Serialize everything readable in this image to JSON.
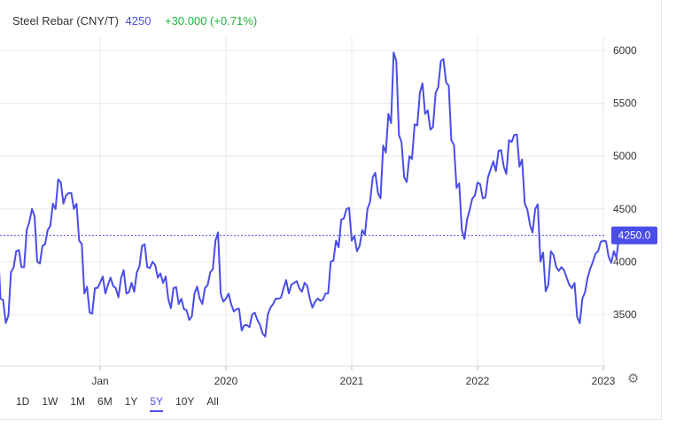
{
  "header": {
    "symbol": "Steel Rebar (CNY/T)",
    "price": "4250",
    "change": "+30.000 (+0.71%)"
  },
  "ranges": [
    "1D",
    "1W",
    "1M",
    "6M",
    "1Y",
    "5Y",
    "10Y",
    "All"
  ],
  "active_range": "5Y",
  "settings_icon": "gear-icon",
  "colors": {
    "line": "#4a4de8",
    "up": "#22b33c",
    "grid": "#e8e8e8",
    "label_bg": "#4a4de8"
  },
  "chart_data": {
    "type": "line",
    "title": "Steel Rebar (CNY/T)",
    "xlabel": "",
    "ylabel": "",
    "x_ticks": [
      "Jan",
      "2020",
      "2021",
      "2022",
      "2023"
    ],
    "y_ticks": [
      3500,
      4000,
      4500,
      5000,
      5500,
      6000
    ],
    "ylim": [
      3000,
      6100
    ],
    "current_value_label": "4250.0",
    "current_value": 4250,
    "grid": true,
    "series": [
      {
        "name": "Steel Rebar",
        "points": [
          [
            "2018-03",
            4150
          ],
          [
            "2018-03",
            3650
          ],
          [
            "2018-04",
            3420
          ],
          [
            "2018-04",
            3900
          ],
          [
            "2018-05",
            4100
          ],
          [
            "2018-05",
            3950
          ],
          [
            "2018-06",
            4300
          ],
          [
            "2018-06",
            4500
          ],
          [
            "2018-07",
            4000
          ],
          [
            "2018-07",
            4150
          ],
          [
            "2018-08",
            4300
          ],
          [
            "2018-08",
            4550
          ],
          [
            "2018-09",
            4780
          ],
          [
            "2018-09",
            4550
          ],
          [
            "2018-10",
            4650
          ],
          [
            "2018-10",
            4500
          ],
          [
            "2018-11",
            4200
          ],
          [
            "2018-11",
            3700
          ],
          [
            "2018-12",
            3520
          ],
          [
            "2018-12",
            3750
          ],
          [
            "2019-01",
            3800
          ],
          [
            "2019-01",
            3700
          ],
          [
            "2019-02",
            3850
          ],
          [
            "2019-02",
            3750
          ],
          [
            "2019-03",
            3850
          ],
          [
            "2019-03",
            3700
          ],
          [
            "2019-04",
            3800
          ],
          [
            "2019-04",
            3900
          ],
          [
            "2019-05",
            4150
          ],
          [
            "2019-05",
            3950
          ],
          [
            "2019-06",
            4000
          ],
          [
            "2019-06",
            3850
          ],
          [
            "2019-07",
            3800
          ],
          [
            "2019-07",
            3650
          ],
          [
            "2019-08",
            3750
          ],
          [
            "2019-08",
            3600
          ],
          [
            "2019-09",
            3550
          ],
          [
            "2019-09",
            3450
          ],
          [
            "2019-10",
            3700
          ],
          [
            "2019-10",
            3650
          ],
          [
            "2019-11",
            3750
          ],
          [
            "2019-11",
            3900
          ],
          [
            "2019-12",
            4200
          ],
          [
            "2019-12",
            3700
          ],
          [
            "2020-01",
            3650
          ],
          [
            "2020-01",
            3600
          ],
          [
            "2020-02",
            3550
          ],
          [
            "2020-02",
            3350
          ],
          [
            "2020-03",
            3400
          ],
          [
            "2020-03",
            3500
          ],
          [
            "2020-04",
            3450
          ],
          [
            "2020-04",
            3320
          ],
          [
            "2020-05",
            3500
          ],
          [
            "2020-05",
            3600
          ],
          [
            "2020-06",
            3650
          ],
          [
            "2020-06",
            3750
          ],
          [
            "2020-07",
            3700
          ],
          [
            "2020-07",
            3800
          ],
          [
            "2020-08",
            3750
          ],
          [
            "2020-08",
            3800
          ],
          [
            "2020-09",
            3650
          ],
          [
            "2020-09",
            3620
          ],
          [
            "2020-10",
            3630
          ],
          [
            "2020-10",
            3700
          ],
          [
            "2020-11",
            4000
          ],
          [
            "2020-11",
            4200
          ],
          [
            "2020-12",
            4400
          ],
          [
            "2020-12",
            4500
          ],
          [
            "2021-01",
            4200
          ],
          [
            "2021-01",
            4100
          ],
          [
            "2021-02",
            4300
          ],
          [
            "2021-02",
            4500
          ],
          [
            "2021-03",
            4800
          ],
          [
            "2021-03",
            4650
          ],
          [
            "2021-04",
            5100
          ],
          [
            "2021-04",
            5400
          ],
          [
            "2021-05",
            5980
          ],
          [
            "2021-05",
            5200
          ],
          [
            "2021-06",
            4800
          ],
          [
            "2021-06",
            5000
          ],
          [
            "2021-07",
            5300
          ],
          [
            "2021-07",
            5600
          ],
          [
            "2021-08",
            5400
          ],
          [
            "2021-08",
            5250
          ],
          [
            "2021-09",
            5600
          ],
          [
            "2021-09",
            5900
          ],
          [
            "2021-10",
            5700
          ],
          [
            "2021-10",
            5150
          ],
          [
            "2021-11",
            4700
          ],
          [
            "2021-11",
            4300
          ],
          [
            "2021-12",
            4400
          ],
          [
            "2021-12",
            4600
          ],
          [
            "2022-01",
            4750
          ],
          [
            "2022-01",
            4600
          ],
          [
            "2022-02",
            4800
          ],
          [
            "2022-02",
            4950
          ],
          [
            "2022-03",
            5050
          ],
          [
            "2022-03",
            4900
          ],
          [
            "2022-04",
            5150
          ],
          [
            "2022-04",
            5200
          ],
          [
            "2022-05",
            4900
          ],
          [
            "2022-05",
            4550
          ],
          [
            "2022-06",
            4350
          ],
          [
            "2022-06",
            4500
          ],
          [
            "2022-07",
            4000
          ],
          [
            "2022-07",
            3720
          ],
          [
            "2022-08",
            4100
          ],
          [
            "2022-08",
            3950
          ],
          [
            "2022-09",
            3950
          ],
          [
            "2022-09",
            3850
          ],
          [
            "2022-10",
            3750
          ],
          [
            "2022-10",
            3480
          ],
          [
            "2022-11",
            3650
          ],
          [
            "2022-11",
            3850
          ],
          [
            "2022-12",
            4000
          ],
          [
            "2022-12",
            4100
          ],
          [
            "2023-01",
            4200
          ],
          [
            "2023-01",
            4050
          ],
          [
            "2023-02",
            4100
          ],
          [
            "2023-02",
            4250
          ]
        ]
      }
    ]
  }
}
